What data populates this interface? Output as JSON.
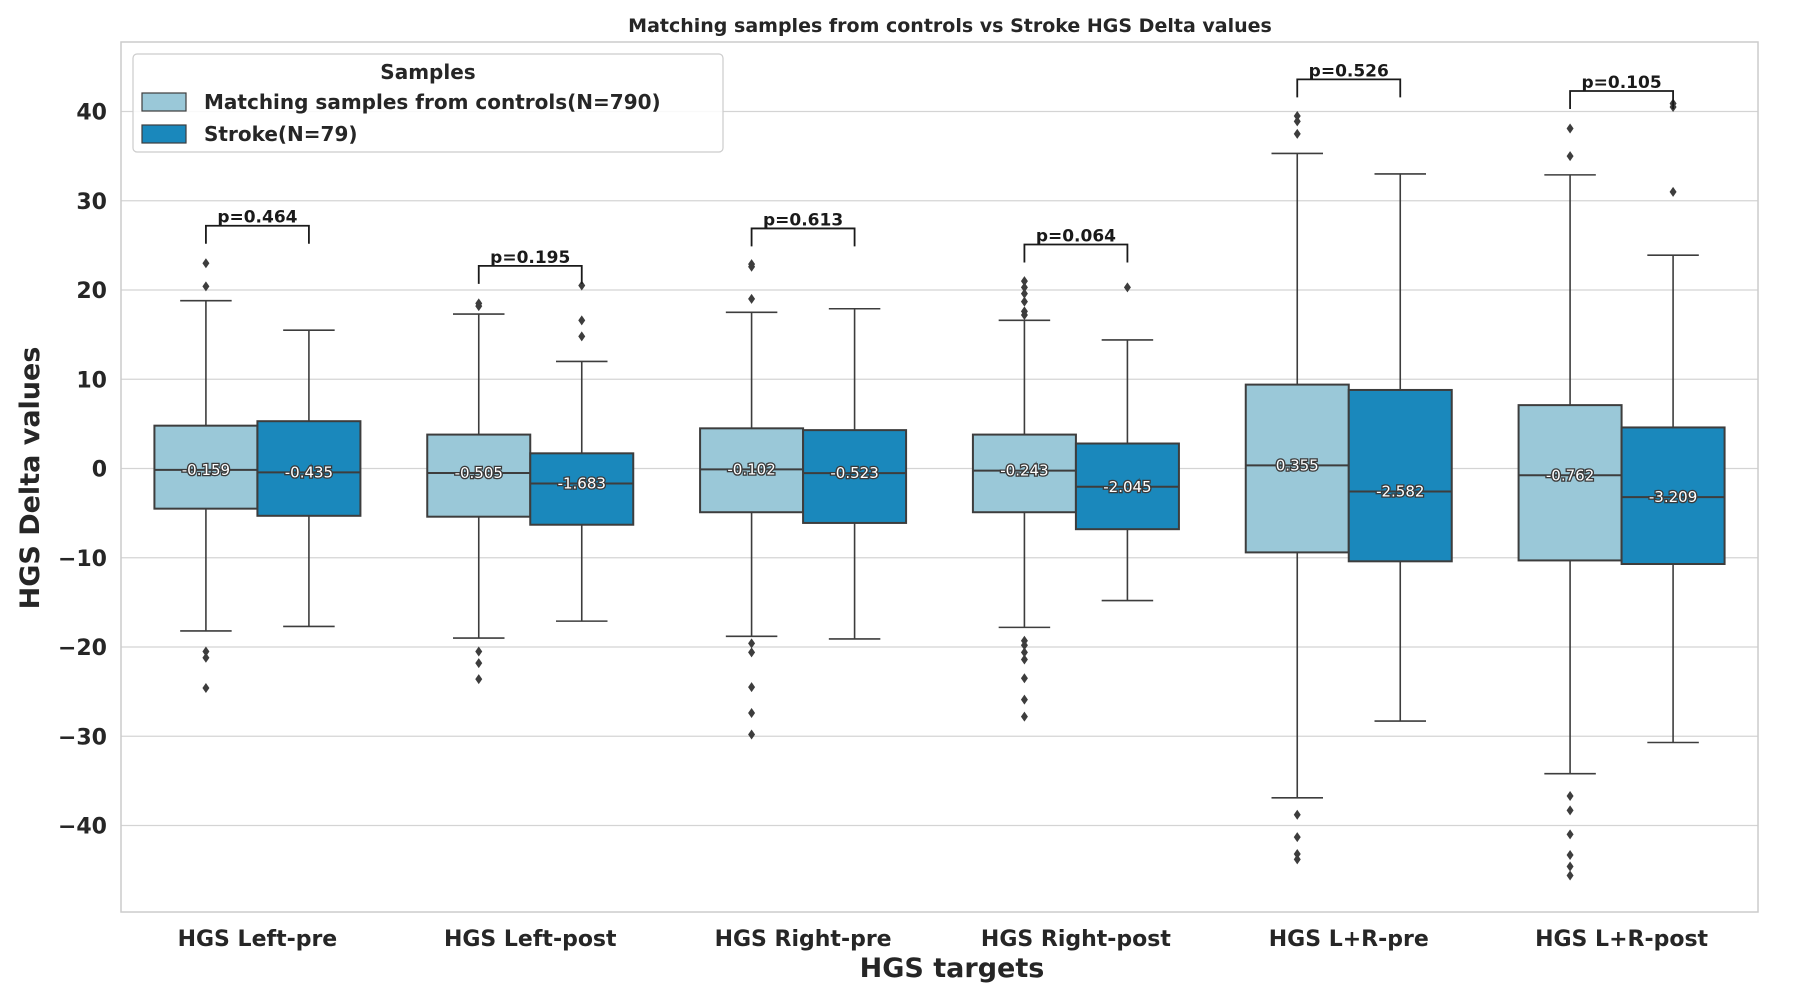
{
  "chart_data": {
    "type": "box",
    "title": "Matching samples from controls vs Stroke HGS Delta values",
    "xlabel": "HGS targets",
    "ylabel": "HGS Delta values",
    "ylim": [
      -50,
      48
    ],
    "yticks": [
      40,
      30,
      20,
      10,
      0,
      -10,
      -20,
      -30,
      -40
    ],
    "ytick_labels": [
      "40",
      "30",
      "20",
      "10",
      "0",
      "−10",
      "−20",
      "−30",
      "−40"
    ],
    "grid": true,
    "categories": [
      "HGS Left-pre",
      "HGS Left-post",
      "HGS Right-pre",
      "HGS Right-post",
      "HGS L+R-pre",
      "HGS L+R-post"
    ],
    "legend": {
      "title": "Samples",
      "placement": "top-left",
      "entries": [
        "Matching samples from controls(N=790)",
        "Stroke(N=79)"
      ]
    },
    "colors": {
      "controls": "#9ac8d8",
      "stroke": "#1a88bc",
      "line": "#3d3d3d"
    },
    "series": [
      {
        "name": "Matching samples from controls(N=790)",
        "boxes": [
          {
            "q1": -4.5,
            "median": -0.159,
            "q3": 4.8,
            "whisker_low": -18.2,
            "whisker_high": 18.8,
            "median_label": "-0.159",
            "outliers": [
              23.0,
              20.4,
              -20.5,
              -21.2,
              -24.6
            ]
          },
          {
            "q1": -5.4,
            "median": -0.505,
            "q3": 3.8,
            "whisker_low": -19.0,
            "whisker_high": 17.3,
            "median_label": "-0.505",
            "outliers": [
              18.5,
              18.2,
              -20.5,
              -21.8,
              -23.6
            ]
          },
          {
            "q1": -4.9,
            "median": -0.102,
            "q3": 4.5,
            "whisker_low": -18.8,
            "whisker_high": 17.5,
            "median_label": "-0.102",
            "outliers": [
              22.9,
              22.6,
              19.0,
              -19.6,
              -20.6,
              -24.5,
              -27.4,
              -29.8
            ]
          },
          {
            "q1": -4.9,
            "median": -0.243,
            "q3": 3.8,
            "whisker_low": -17.8,
            "whisker_high": 16.6,
            "median_label": "-0.243",
            "outliers": [
              21.0,
              20.3,
              19.6,
              18.7,
              17.6,
              17.2,
              -19.3,
              -19.8,
              -20.6,
              -21.4,
              -23.5,
              -25.9,
              -27.8
            ]
          },
          {
            "q1": -9.4,
            "median": 0.355,
            "q3": 9.4,
            "whisker_low": -36.9,
            "whisker_high": 35.3,
            "median_label": "0.355",
            "outliers": [
              39.5,
              38.9,
              37.5,
              -38.8,
              -41.3,
              -43.2,
              -43.8
            ]
          },
          {
            "q1": -10.3,
            "median": -0.762,
            "q3": 7.1,
            "whisker_low": -34.2,
            "whisker_high": 32.9,
            "median_label": "-0.762",
            "outliers": [
              38.1,
              35.0,
              -36.7,
              -38.3,
              -41.0,
              -43.3,
              -44.6,
              -45.6
            ]
          }
        ]
      },
      {
        "name": "Stroke(N=79)",
        "boxes": [
          {
            "q1": -5.3,
            "median": -0.435,
            "q3": 5.3,
            "whisker_low": -17.7,
            "whisker_high": 15.5,
            "median_label": "-0.435",
            "outliers": []
          },
          {
            "q1": -6.3,
            "median": -1.683,
            "q3": 1.7,
            "whisker_low": -17.1,
            "whisker_high": 12.0,
            "median_label": "-1.683",
            "outliers": [
              20.5,
              16.6,
              14.8
            ]
          },
          {
            "q1": -6.1,
            "median": -0.523,
            "q3": 4.3,
            "whisker_low": -19.1,
            "whisker_high": 17.9,
            "median_label": "-0.523",
            "outliers": []
          },
          {
            "q1": -6.8,
            "median": -2.045,
            "q3": 2.8,
            "whisker_low": -14.8,
            "whisker_high": 14.4,
            "median_label": "-2.045",
            "outliers": [
              20.3
            ]
          },
          {
            "q1": -10.4,
            "median": -2.582,
            "q3": 8.8,
            "whisker_low": -28.3,
            "whisker_high": 33.0,
            "median_label": "-2.582",
            "outliers": []
          },
          {
            "q1": -10.7,
            "median": -3.209,
            "q3": 4.6,
            "whisker_low": -30.7,
            "whisker_high": 23.9,
            "median_label": "-3.209",
            "outliers": [
              40.9,
              40.5,
              31.0
            ]
          }
        ]
      }
    ],
    "annotations": [
      {
        "label": "p=0.464",
        "y": 27.2
      },
      {
        "label": "p=0.195",
        "y": 22.7
      },
      {
        "label": "p=0.613",
        "y": 26.9
      },
      {
        "label": "p=0.064",
        "y": 25.1
      },
      {
        "label": "p=0.526",
        "y": 43.6
      },
      {
        "label": "p=0.105",
        "y": 42.3
      }
    ]
  }
}
